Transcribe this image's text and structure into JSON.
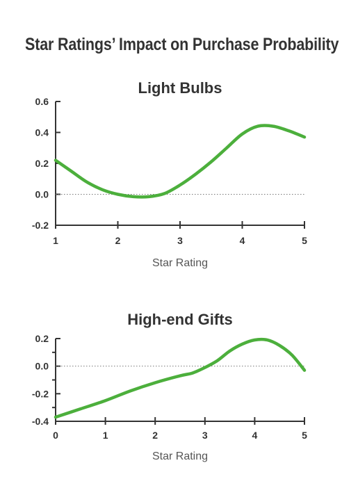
{
  "title": "Star Ratings’ Impact on Purchase Probability",
  "colors": {
    "line": "#4caf3c",
    "text": "#333333"
  },
  "chart_data": [
    {
      "type": "line",
      "title": "Light Bulbs",
      "xlabel": "Star Rating",
      "ylabel": "",
      "xlim": [
        1,
        5
      ],
      "ylim": [
        -0.2,
        0.6
      ],
      "xticks": [
        1,
        2,
        3,
        4,
        5
      ],
      "yticks": [
        -0.2,
        0.0,
        0.2,
        0.4,
        0.6
      ],
      "ytick_labels": [
        "-0.2",
        "0.0",
        "0.2",
        "0.4",
        "0.6"
      ],
      "reference_line": 0.0,
      "grid": false,
      "x": [
        1.0,
        1.25,
        1.5,
        1.75,
        2.0,
        2.25,
        2.5,
        2.75,
        3.0,
        3.25,
        3.5,
        3.75,
        4.0,
        4.25,
        4.5,
        4.75,
        5.0
      ],
      "values": [
        0.22,
        0.15,
        0.08,
        0.03,
        0.0,
        -0.015,
        -0.015,
        0.005,
        0.06,
        0.13,
        0.21,
        0.3,
        0.39,
        0.44,
        0.44,
        0.41,
        0.37
      ]
    },
    {
      "type": "line",
      "title": "High-end Gifts",
      "xlabel": "Star Rating",
      "ylabel": "",
      "xlim": [
        0,
        5
      ],
      "ylim": [
        -0.4,
        0.2
      ],
      "xticks": [
        0,
        1,
        2,
        3,
        4,
        5
      ],
      "yticks": [
        -0.4,
        -0.2,
        0.0,
        0.2
      ],
      "ytick_labels": [
        "-0.4",
        "-0.2",
        "0.0",
        "0.2"
      ],
      "minor_yticks": [
        -0.3,
        -0.1,
        0.1
      ],
      "reference_line": 0.0,
      "grid": false,
      "x": [
        0.0,
        0.5,
        1.0,
        1.5,
        2.0,
        2.5,
        2.75,
        3.0,
        3.25,
        3.5,
        3.75,
        4.0,
        4.25,
        4.5,
        4.75,
        5.0
      ],
      "values": [
        -0.37,
        -0.31,
        -0.25,
        -0.18,
        -0.12,
        -0.07,
        -0.05,
        -0.01,
        0.04,
        0.11,
        0.16,
        0.19,
        0.19,
        0.15,
        0.08,
        -0.03
      ]
    }
  ]
}
